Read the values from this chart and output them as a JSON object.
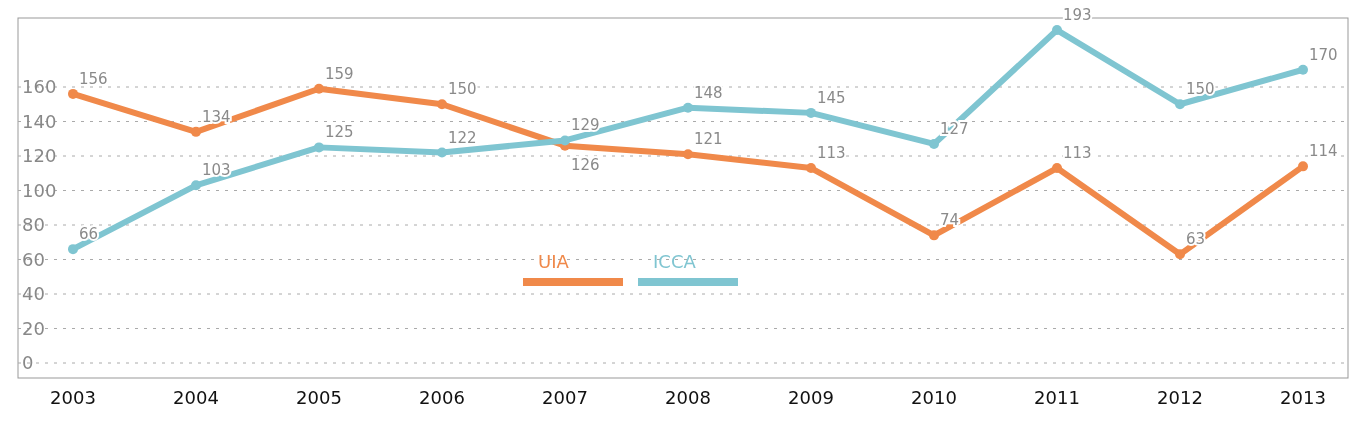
{
  "chart_data": {
    "type": "line",
    "categories": [
      "2003",
      "2004",
      "2005",
      "2006",
      "2007",
      "2008",
      "2009",
      "2010",
      "2011",
      "2012",
      "2013"
    ],
    "series": [
      {
        "name": "UIA",
        "color": "#f0894a",
        "values": [
          156,
          134,
          159,
          150,
          126,
          121,
          113,
          74,
          113,
          63,
          114
        ]
      },
      {
        "name": "ICCA",
        "color": "#7fc5d1",
        "values": [
          66,
          103,
          125,
          122,
          129,
          148,
          145,
          127,
          193,
          150,
          170
        ]
      }
    ],
    "ylim": [
      0,
      200
    ],
    "yticks": [
      0,
      20,
      40,
      60,
      80,
      100,
      120,
      140,
      160
    ],
    "grid": "y",
    "legend": "center",
    "marker": "circle",
    "data_labels": true
  }
}
